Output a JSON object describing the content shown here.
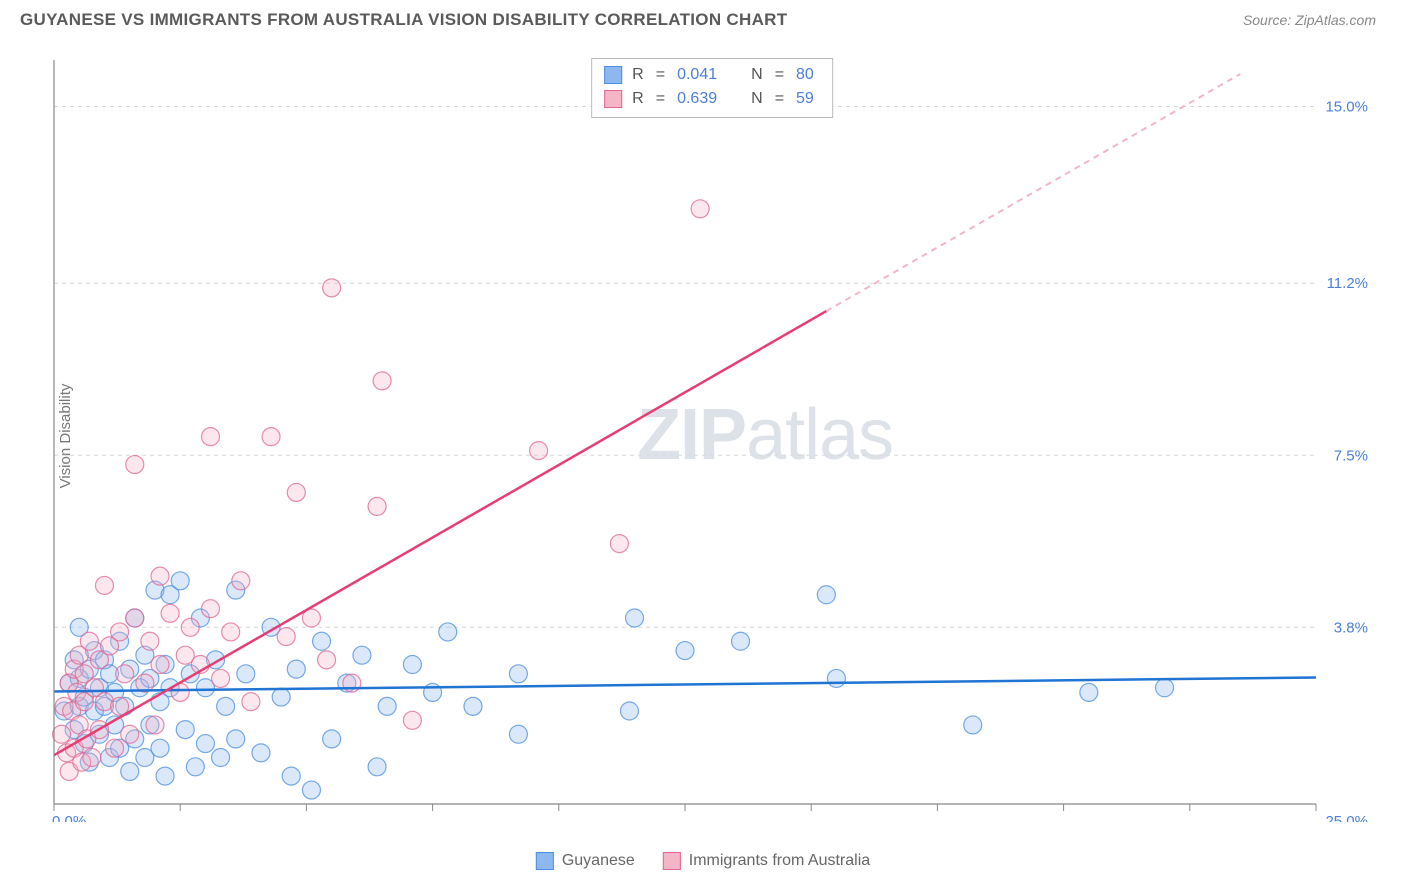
{
  "title": "GUYANESE VS IMMIGRANTS FROM AUSTRALIA VISION DISABILITY CORRELATION CHART",
  "source": "Source: ZipAtlas.com",
  "ylabel": "Vision Disability",
  "watermark": {
    "bold": "ZIP",
    "thin": "atlas"
  },
  "chart": {
    "type": "scatter",
    "x_domain": [
      0,
      25
    ],
    "y_domain": [
      0,
      16
    ],
    "background_color": "#ffffff",
    "grid_color": "#d8d8d8",
    "axis_color": "#888888",
    "tick_label_color": "#4a7fd6",
    "y_ticks": [
      {
        "v": 3.8,
        "label": "3.8%"
      },
      {
        "v": 7.5,
        "label": "7.5%"
      },
      {
        "v": 11.2,
        "label": "11.2%"
      },
      {
        "v": 15.0,
        "label": "15.0%"
      }
    ],
    "x_tick_positions": [
      0,
      2.5,
      5,
      7.5,
      10,
      12.5,
      15,
      17.5,
      20,
      22.5,
      25
    ],
    "x_start_label": "0.0%",
    "x_end_label": "25.0%",
    "marker_radius": 9,
    "marker_opacity_fill": 0.32,
    "marker_opacity_stroke": 0.75,
    "series": [
      {
        "name": "Guyanese",
        "color_fill": "#8db8ee",
        "color_stroke": "#4a8fe0",
        "R": "0.041",
        "N": "80",
        "trend": {
          "x1": 0,
          "y1": 2.42,
          "x2": 25,
          "y2": 2.72,
          "color": "#1f74d4"
        },
        "points": [
          [
            0.2,
            2.0
          ],
          [
            0.3,
            2.6
          ],
          [
            0.4,
            1.6
          ],
          [
            0.4,
            3.1
          ],
          [
            0.5,
            2.1
          ],
          [
            0.5,
            2.7
          ],
          [
            0.5,
            3.8
          ],
          [
            0.6,
            1.3
          ],
          [
            0.6,
            2.3
          ],
          [
            0.7,
            2.9
          ],
          [
            0.7,
            0.9
          ],
          [
            0.8,
            2.0
          ],
          [
            0.8,
            3.3
          ],
          [
            0.9,
            1.5
          ],
          [
            0.9,
            2.5
          ],
          [
            1.0,
            2.1
          ],
          [
            1.0,
            3.1
          ],
          [
            1.1,
            1.0
          ],
          [
            1.1,
            2.8
          ],
          [
            1.2,
            1.7
          ],
          [
            1.2,
            2.4
          ],
          [
            1.3,
            3.5
          ],
          [
            1.3,
            1.2
          ],
          [
            1.4,
            2.1
          ],
          [
            1.5,
            0.7
          ],
          [
            1.5,
            2.9
          ],
          [
            1.6,
            4.0
          ],
          [
            1.6,
            1.4
          ],
          [
            1.7,
            2.5
          ],
          [
            1.8,
            1.0
          ],
          [
            1.8,
            3.2
          ],
          [
            1.9,
            1.7
          ],
          [
            1.9,
            2.7
          ],
          [
            2.0,
            4.6
          ],
          [
            2.1,
            1.2
          ],
          [
            2.1,
            2.2
          ],
          [
            2.2,
            3.0
          ],
          [
            2.2,
            0.6
          ],
          [
            2.3,
            2.5
          ],
          [
            2.3,
            4.5
          ],
          [
            2.5,
            4.8
          ],
          [
            2.6,
            1.6
          ],
          [
            2.7,
            2.8
          ],
          [
            2.8,
            0.8
          ],
          [
            2.9,
            4.0
          ],
          [
            3.0,
            1.3
          ],
          [
            3.0,
            2.5
          ],
          [
            3.2,
            3.1
          ],
          [
            3.3,
            1.0
          ],
          [
            3.4,
            2.1
          ],
          [
            3.6,
            4.6
          ],
          [
            3.6,
            1.4
          ],
          [
            3.8,
            2.8
          ],
          [
            4.1,
            1.1
          ],
          [
            4.3,
            3.8
          ],
          [
            4.5,
            2.3
          ],
          [
            4.7,
            0.6
          ],
          [
            4.8,
            2.9
          ],
          [
            5.1,
            0.3
          ],
          [
            5.3,
            3.5
          ],
          [
            5.5,
            1.4
          ],
          [
            5.8,
            2.6
          ],
          [
            6.1,
            3.2
          ],
          [
            6.4,
            0.8
          ],
          [
            6.6,
            2.1
          ],
          [
            7.1,
            3.0
          ],
          [
            7.5,
            2.4
          ],
          [
            7.8,
            3.7
          ],
          [
            8.3,
            2.1
          ],
          [
            9.2,
            1.5
          ],
          [
            9.2,
            2.8
          ],
          [
            11.4,
            2.0
          ],
          [
            11.5,
            4.0
          ],
          [
            12.5,
            3.3
          ],
          [
            13.6,
            3.5
          ],
          [
            15.3,
            4.5
          ],
          [
            15.5,
            2.7
          ],
          [
            18.2,
            1.7
          ],
          [
            20.5,
            2.4
          ],
          [
            22.0,
            2.5
          ]
        ]
      },
      {
        "name": "Immigrants from Australia",
        "color_fill": "#f4b5c6",
        "color_stroke": "#e06693",
        "R": "0.639",
        "N": "59",
        "trend": {
          "x1": 0,
          "y1": 1.05,
          "x2": 15.3,
          "y2": 10.6,
          "color": "#e73d73"
        },
        "trend_dash": {
          "x1": 15.3,
          "y1": 10.6,
          "x2": 23.5,
          "y2": 15.7,
          "color": "#f4b5c6"
        },
        "points": [
          [
            0.15,
            1.5
          ],
          [
            0.2,
            2.1
          ],
          [
            0.25,
            1.1
          ],
          [
            0.3,
            2.6
          ],
          [
            0.3,
            0.7
          ],
          [
            0.35,
            2.0
          ],
          [
            0.4,
            2.9
          ],
          [
            0.4,
            1.2
          ],
          [
            0.45,
            2.4
          ],
          [
            0.5,
            1.7
          ],
          [
            0.5,
            3.2
          ],
          [
            0.55,
            0.9
          ],
          [
            0.6,
            2.2
          ],
          [
            0.6,
            2.8
          ],
          [
            0.65,
            1.4
          ],
          [
            0.7,
            3.5
          ],
          [
            0.75,
            1.0
          ],
          [
            0.8,
            2.5
          ],
          [
            0.9,
            3.1
          ],
          [
            0.9,
            1.6
          ],
          [
            1.0,
            2.2
          ],
          [
            1.0,
            4.7
          ],
          [
            1.1,
            3.4
          ],
          [
            1.2,
            1.2
          ],
          [
            1.3,
            2.1
          ],
          [
            1.3,
            3.7
          ],
          [
            1.4,
            2.8
          ],
          [
            1.5,
            1.5
          ],
          [
            1.6,
            4.0
          ],
          [
            1.6,
            7.3
          ],
          [
            1.8,
            2.6
          ],
          [
            1.9,
            3.5
          ],
          [
            2.0,
            1.7
          ],
          [
            2.1,
            3.0
          ],
          [
            2.1,
            4.9
          ],
          [
            2.3,
            4.1
          ],
          [
            2.5,
            2.4
          ],
          [
            2.6,
            3.2
          ],
          [
            2.7,
            3.8
          ],
          [
            2.9,
            3.0
          ],
          [
            3.1,
            4.2
          ],
          [
            3.1,
            7.9
          ],
          [
            3.3,
            2.7
          ],
          [
            3.5,
            3.7
          ],
          [
            3.7,
            4.8
          ],
          [
            3.9,
            2.2
          ],
          [
            4.3,
            7.9
          ],
          [
            4.6,
            3.6
          ],
          [
            4.8,
            6.7
          ],
          [
            5.1,
            4.0
          ],
          [
            5.4,
            3.1
          ],
          [
            5.5,
            11.1
          ],
          [
            5.9,
            2.6
          ],
          [
            6.4,
            6.4
          ],
          [
            6.5,
            9.1
          ],
          [
            7.1,
            1.8
          ],
          [
            9.6,
            7.6
          ],
          [
            11.2,
            5.6
          ],
          [
            12.8,
            12.8
          ]
        ]
      }
    ]
  },
  "legend_top": {
    "R_label": "R",
    "N_label": "N",
    "eq": "="
  },
  "legend_bottom": {
    "items": [
      {
        "label": "Guyanese",
        "fill": "#8db8ee",
        "stroke": "#4a8fe0"
      },
      {
        "label": "Immigrants from Australia",
        "fill": "#f4b5c6",
        "stroke": "#e06693"
      }
    ]
  }
}
